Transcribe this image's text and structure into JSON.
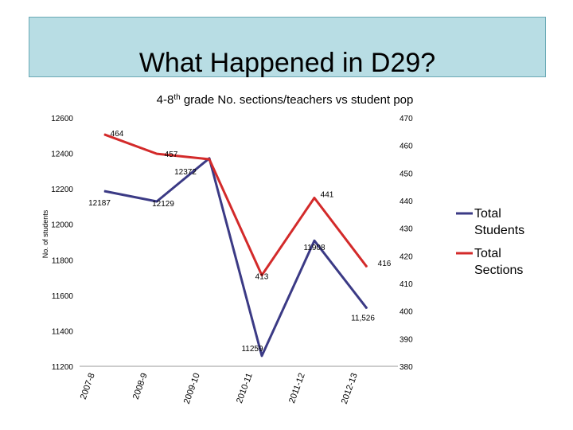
{
  "slide": {
    "title": "What Happened in D29?"
  },
  "chart_data": {
    "type": "line",
    "title_main": "4-8",
    "title_sup": "th",
    "title_rest": " grade No. sections/teachers vs student pop",
    "ylabel": "No. of students",
    "categories": [
      "2007-8",
      "2008-9",
      "2009-10",
      "2010-11",
      "2011-12",
      "2012-13"
    ],
    "y_left": {
      "min": 11200,
      "max": 12600,
      "ticks": [
        "11200",
        "11400",
        "11600",
        "11800",
        "12000",
        "12200",
        "12400",
        "12600"
      ]
    },
    "y_right": {
      "min": 380,
      "max": 470,
      "ticks": [
        "380",
        "390",
        "400",
        "410",
        "420",
        "430",
        "440",
        "450",
        "460",
        "470"
      ]
    },
    "series": [
      {
        "name": "Total Students",
        "axis": "left",
        "color": "#3b3a85",
        "values": [
          12187,
          12129,
          12372,
          11259,
          11908,
          11526
        ],
        "labels": [
          "12187",
          "12129",
          "12372",
          "11259",
          "11908",
          "11,526"
        ]
      },
      {
        "name": "Total Sections",
        "axis": "right",
        "color": "#d32a2a",
        "values": [
          464,
          457,
          455,
          413,
          441,
          416
        ],
        "labels": [
          "464",
          "457",
          "",
          "413",
          "441",
          "416"
        ]
      }
    ],
    "legend": [
      {
        "line1": "Total",
        "line2": "Students",
        "color": "#3b3a85"
      },
      {
        "line1": "Total",
        "line2": "Sections",
        "color": "#d32a2a"
      }
    ],
    "legend_position": "right",
    "grid": false
  }
}
